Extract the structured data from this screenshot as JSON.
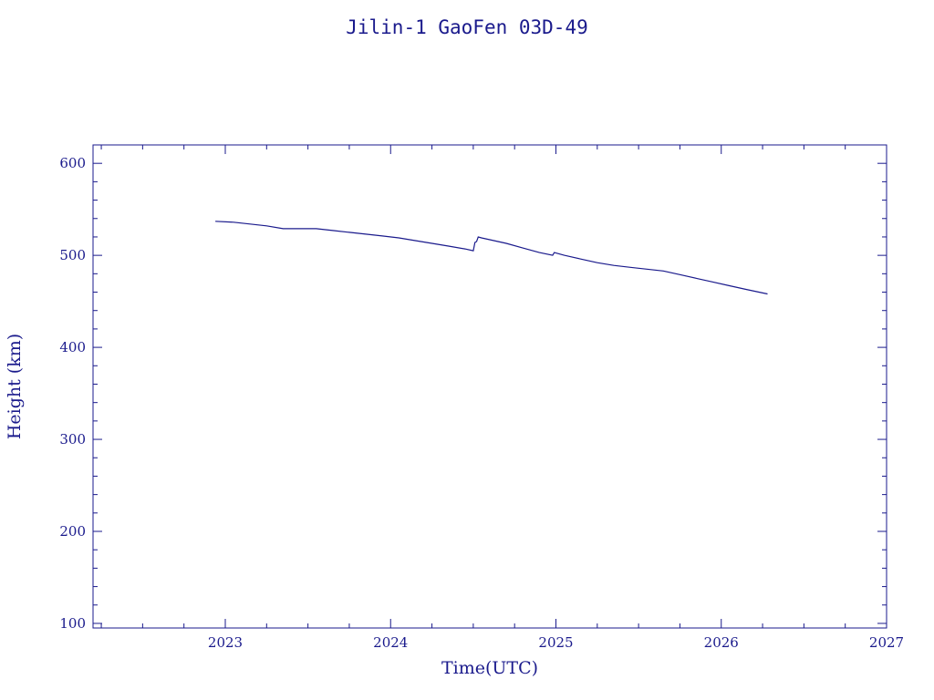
{
  "chart_data": {
    "type": "line",
    "title": "Jilin-1 GaoFen 03D-49",
    "xlabel": "Time(UTC)",
    "ylabel": "Height (km)",
    "xlim": [
      2022.2,
      2027.0
    ],
    "ylim": [
      95,
      620
    ],
    "x_ticks": [
      2023,
      2024,
      2025,
      2026,
      2027
    ],
    "y_ticks": [
      100,
      200,
      300,
      400,
      500,
      600
    ],
    "x_minor_step": 0.25,
    "y_minor_step": 20,
    "grid": false,
    "color": "#1a1a8c",
    "series": [
      {
        "x": [
          2022.94,
          2023.05,
          2023.15,
          2023.25,
          2023.35,
          2023.45,
          2023.55,
          2023.65,
          2023.75,
          2023.85,
          2023.95,
          2024.05,
          2024.15,
          2024.25,
          2024.35,
          2024.45,
          2024.5,
          2024.51,
          2024.52,
          2024.53,
          2024.55,
          2024.6,
          2024.7,
          2024.8,
          2024.9,
          2024.98,
          2024.99,
          2025.05,
          2025.15,
          2025.25,
          2025.35,
          2025.45,
          2025.55,
          2025.65,
          2025.75,
          2025.85,
          2025.95,
          2026.05,
          2026.15,
          2026.28
        ],
        "y": [
          537,
          536,
          534,
          532,
          529,
          529,
          529,
          527,
          525,
          523,
          521,
          519,
          516,
          513,
          510,
          507,
          505,
          514,
          515,
          520,
          519,
          517,
          513,
          508,
          503,
          500,
          503,
          500,
          496,
          492,
          489,
          487,
          485,
          483,
          479,
          475,
          471,
          467,
          463,
          458
        ]
      }
    ]
  }
}
